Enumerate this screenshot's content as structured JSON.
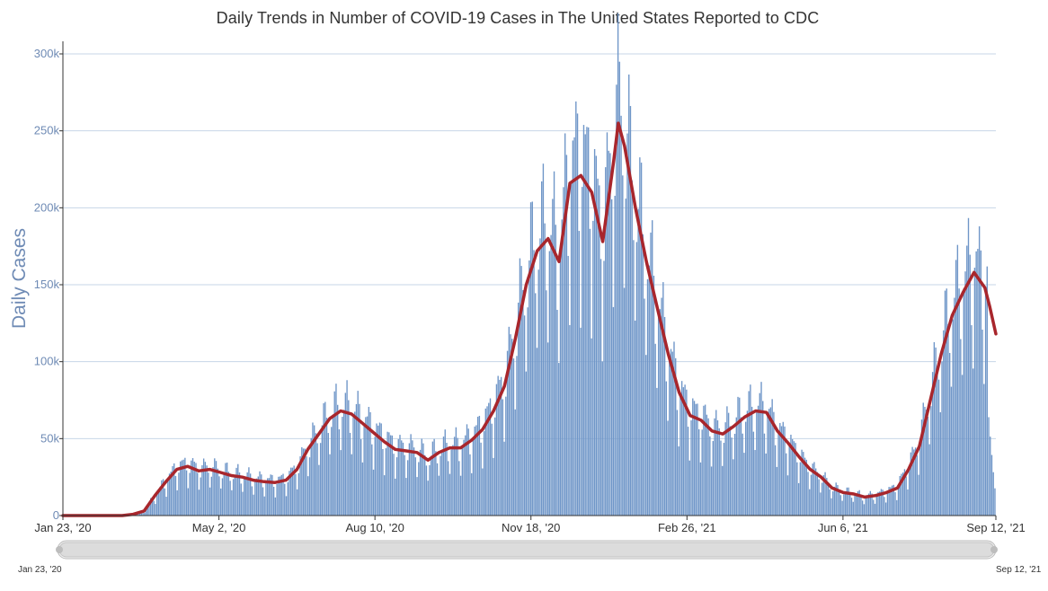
{
  "chart_data": {
    "type": "bar",
    "title": "Daily Trends in Number of COVID-19 Cases in The United States Reported to CDC",
    "ylabel": "Daily Cases",
    "ylim": [
      0,
      300000
    ],
    "y_ticks": [
      0,
      50000,
      100000,
      150000,
      200000,
      250000,
      300000
    ],
    "y_tick_labels": [
      "0",
      "50k",
      "100k",
      "150k",
      "200k",
      "250k",
      "300k"
    ],
    "x_range": [
      "2020-01-23",
      "2021-09-12"
    ],
    "x_tick_labels": [
      {
        "date": "2020-01-23",
        "label": "Jan 23, '20"
      },
      {
        "date": "2020-05-02",
        "label": "May 2, '20"
      },
      {
        "date": "2020-08-10",
        "label": "Aug 10, '20"
      },
      {
        "date": "2020-11-18",
        "label": "Nov 18, '20"
      },
      {
        "date": "2021-02-26",
        "label": "Feb 26, '21"
      },
      {
        "date": "2021-06-06",
        "label": "Jun 6, '21"
      },
      {
        "date": "2021-09-12",
        "label": "Sep 12, '21"
      }
    ],
    "grid": true,
    "series": [
      {
        "type": "bar",
        "color": "#6f96c8",
        "weekly_average_values": [
          [
            "2020-01-23",
            0
          ],
          [
            "2020-03-01",
            0
          ],
          [
            "2020-03-08",
            800
          ],
          [
            "2020-03-15",
            3000
          ],
          [
            "2020-03-22",
            13000
          ],
          [
            "2020-03-29",
            22000
          ],
          [
            "2020-04-05",
            30000
          ],
          [
            "2020-04-12",
            32000
          ],
          [
            "2020-04-19",
            29000
          ],
          [
            "2020-04-26",
            30000
          ],
          [
            "2020-05-03",
            28000
          ],
          [
            "2020-05-10",
            26000
          ],
          [
            "2020-05-17",
            25000
          ],
          [
            "2020-05-24",
            23000
          ],
          [
            "2020-05-31",
            22000
          ],
          [
            "2020-06-07",
            21500
          ],
          [
            "2020-06-14",
            23000
          ],
          [
            "2020-06-21",
            30000
          ],
          [
            "2020-06-28",
            43000
          ],
          [
            "2020-07-05",
            53000
          ],
          [
            "2020-07-12",
            63000
          ],
          [
            "2020-07-19",
            68000
          ],
          [
            "2020-07-26",
            66000
          ],
          [
            "2020-08-02",
            60000
          ],
          [
            "2020-08-09",
            54000
          ],
          [
            "2020-08-16",
            48000
          ],
          [
            "2020-08-23",
            43000
          ],
          [
            "2020-08-30",
            42000
          ],
          [
            "2020-09-06",
            41000
          ],
          [
            "2020-09-13",
            36000
          ],
          [
            "2020-09-20",
            41000
          ],
          [
            "2020-09-27",
            44000
          ],
          [
            "2020-10-04",
            44000
          ],
          [
            "2020-10-11",
            49000
          ],
          [
            "2020-10-18",
            56000
          ],
          [
            "2020-10-25",
            68000
          ],
          [
            "2020-11-01",
            84000
          ],
          [
            "2020-11-08",
            115000
          ],
          [
            "2020-11-15",
            150000
          ],
          [
            "2020-11-22",
            172000
          ],
          [
            "2020-11-29",
            180000
          ],
          [
            "2020-12-06",
            165000
          ],
          [
            "2020-12-13",
            216000
          ],
          [
            "2020-12-20",
            221000
          ],
          [
            "2020-12-27",
            210000
          ],
          [
            "2021-01-03",
            178000
          ],
          [
            "2021-01-10",
            230000
          ],
          [
            "2021-01-13",
            255000
          ],
          [
            "2021-01-17",
            240000
          ],
          [
            "2021-01-24",
            200000
          ],
          [
            "2021-01-31",
            165000
          ],
          [
            "2021-02-07",
            135000
          ],
          [
            "2021-02-14",
            105000
          ],
          [
            "2021-02-21",
            80000
          ],
          [
            "2021-02-28",
            65000
          ],
          [
            "2021-03-07",
            62000
          ],
          [
            "2021-03-14",
            55000
          ],
          [
            "2021-03-21",
            53000
          ],
          [
            "2021-03-28",
            58000
          ],
          [
            "2021-04-04",
            64000
          ],
          [
            "2021-04-11",
            68000
          ],
          [
            "2021-04-18",
            67000
          ],
          [
            "2021-04-25",
            55000
          ],
          [
            "2021-05-02",
            47000
          ],
          [
            "2021-05-09",
            38000
          ],
          [
            "2021-05-16",
            30000
          ],
          [
            "2021-05-23",
            25000
          ],
          [
            "2021-05-30",
            18000
          ],
          [
            "2021-06-06",
            15000
          ],
          [
            "2021-06-13",
            14000
          ],
          [
            "2021-06-20",
            12000
          ],
          [
            "2021-06-27",
            13000
          ],
          [
            "2021-07-04",
            15000
          ],
          [
            "2021-07-11",
            18000
          ],
          [
            "2021-07-18",
            30000
          ],
          [
            "2021-07-25",
            45000
          ],
          [
            "2021-08-01",
            75000
          ],
          [
            "2021-08-08",
            105000
          ],
          [
            "2021-08-15",
            130000
          ],
          [
            "2021-08-22",
            145000
          ],
          [
            "2021-08-29",
            158000
          ],
          [
            "2021-09-05",
            148000
          ],
          [
            "2021-09-08",
            136000
          ],
          [
            "2021-09-12",
            118000
          ]
        ]
      },
      {
        "type": "line",
        "color": "#a8262c",
        "values": [
          [
            "2020-01-23",
            0
          ],
          [
            "2020-03-01",
            0
          ],
          [
            "2020-03-08",
            800
          ],
          [
            "2020-03-15",
            3000
          ],
          [
            "2020-03-22",
            13000
          ],
          [
            "2020-03-29",
            22000
          ],
          [
            "2020-04-05",
            30000
          ],
          [
            "2020-04-12",
            32000
          ],
          [
            "2020-04-19",
            29000
          ],
          [
            "2020-04-26",
            30000
          ],
          [
            "2020-05-03",
            28000
          ],
          [
            "2020-05-10",
            26000
          ],
          [
            "2020-05-17",
            25000
          ],
          [
            "2020-05-24",
            23000
          ],
          [
            "2020-05-31",
            22000
          ],
          [
            "2020-06-07",
            21500
          ],
          [
            "2020-06-14",
            23000
          ],
          [
            "2020-06-21",
            30000
          ],
          [
            "2020-06-28",
            43000
          ],
          [
            "2020-07-05",
            53000
          ],
          [
            "2020-07-12",
            63000
          ],
          [
            "2020-07-19",
            68000
          ],
          [
            "2020-07-26",
            66000
          ],
          [
            "2020-08-02",
            60000
          ],
          [
            "2020-08-09",
            54000
          ],
          [
            "2020-08-16",
            48000
          ],
          [
            "2020-08-23",
            43000
          ],
          [
            "2020-08-30",
            42000
          ],
          [
            "2020-09-06",
            41000
          ],
          [
            "2020-09-13",
            36000
          ],
          [
            "2020-09-20",
            41000
          ],
          [
            "2020-09-27",
            44000
          ],
          [
            "2020-10-04",
            44000
          ],
          [
            "2020-10-11",
            49000
          ],
          [
            "2020-10-18",
            56000
          ],
          [
            "2020-10-25",
            68000
          ],
          [
            "2020-11-01",
            84000
          ],
          [
            "2020-11-08",
            115000
          ],
          [
            "2020-11-15",
            150000
          ],
          [
            "2020-11-22",
            172000
          ],
          [
            "2020-11-29",
            180000
          ],
          [
            "2020-12-06",
            165000
          ],
          [
            "2020-12-13",
            216000
          ],
          [
            "2020-12-20",
            221000
          ],
          [
            "2020-12-27",
            210000
          ],
          [
            "2021-01-03",
            178000
          ],
          [
            "2021-01-10",
            230000
          ],
          [
            "2021-01-13",
            255000
          ],
          [
            "2021-01-17",
            240000
          ],
          [
            "2021-01-24",
            200000
          ],
          [
            "2021-01-31",
            165000
          ],
          [
            "2021-02-07",
            135000
          ],
          [
            "2021-02-14",
            105000
          ],
          [
            "2021-02-21",
            80000
          ],
          [
            "2021-02-28",
            65000
          ],
          [
            "2021-03-07",
            62000
          ],
          [
            "2021-03-14",
            55000
          ],
          [
            "2021-03-21",
            53000
          ],
          [
            "2021-03-28",
            58000
          ],
          [
            "2021-04-04",
            64000
          ],
          [
            "2021-04-11",
            68000
          ],
          [
            "2021-04-18",
            67000
          ],
          [
            "2021-04-25",
            55000
          ],
          [
            "2021-05-02",
            47000
          ],
          [
            "2021-05-09",
            38000
          ],
          [
            "2021-05-16",
            30000
          ],
          [
            "2021-05-23",
            25000
          ],
          [
            "2021-05-30",
            18000
          ],
          [
            "2021-06-06",
            15000
          ],
          [
            "2021-06-13",
            14000
          ],
          [
            "2021-06-20",
            12000
          ],
          [
            "2021-06-27",
            13000
          ],
          [
            "2021-07-04",
            15000
          ],
          [
            "2021-07-11",
            18000
          ],
          [
            "2021-07-18",
            30000
          ],
          [
            "2021-07-25",
            45000
          ],
          [
            "2021-08-01",
            75000
          ],
          [
            "2021-08-08",
            105000
          ],
          [
            "2021-08-15",
            130000
          ],
          [
            "2021-08-22",
            145000
          ],
          [
            "2021-08-29",
            158000
          ],
          [
            "2021-09-05",
            148000
          ],
          [
            "2021-09-08",
            136000
          ],
          [
            "2021-09-12",
            118000
          ]
        ]
      }
    ]
  },
  "navigator": {
    "start_label": "Jan 23, '20",
    "end_label": "Sep 12, '21"
  }
}
